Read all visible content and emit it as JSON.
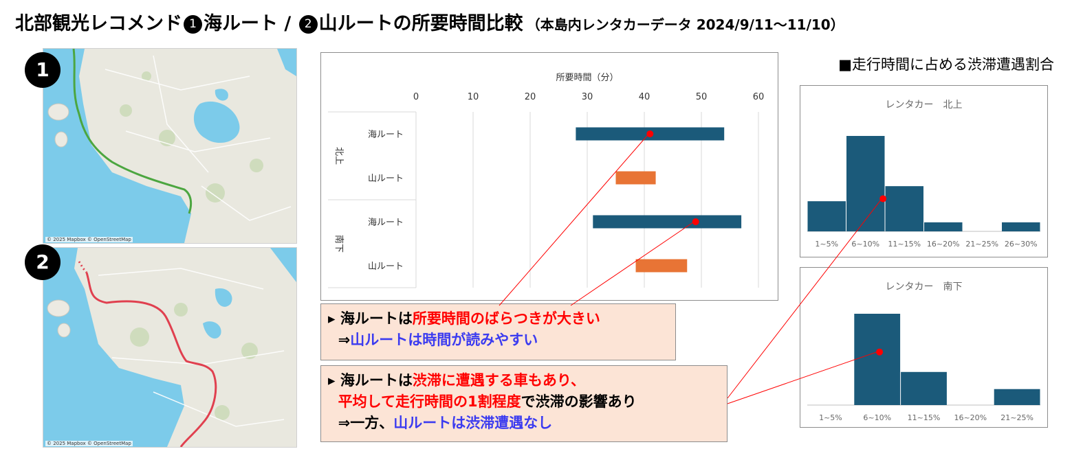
{
  "title": {
    "part1": "北部観光レコメンド",
    "badge1": "1",
    "part2": "海ルート / ",
    "badge2": "2",
    "part3": "山ルートの所要時間比較",
    "subtitle": "（本島内レンタカーデータ 2024/9/11～11/10）"
  },
  "maps": [
    {
      "badge": "1",
      "credit": "© 2025 Mapbox © OpenStreetMap",
      "route_color": "#4ca640"
    },
    {
      "badge": "2",
      "credit": "© 2025 Mapbox © OpenStreetMap",
      "route_color": "#e0404f"
    }
  ],
  "hist_section_title": "■走行時間に占める渋滞遭遇割合",
  "callouts": [
    {
      "lines": [
        [
          {
            "t": "▸ 海ルートは",
            "c": ""
          },
          {
            "t": "所要時間のばらつきが大きい",
            "c": "red"
          }
        ],
        [
          {
            "t": "  ⇒",
            "c": ""
          },
          {
            "t": "山ルートは時間が読みやすい",
            "c": "blue"
          }
        ]
      ]
    },
    {
      "lines": [
        [
          {
            "t": "▸ 海ルートは",
            "c": ""
          },
          {
            "t": "渋滞に遭遇する車もあり、",
            "c": "red"
          }
        ],
        [
          {
            "t": "  ",
            "c": ""
          },
          {
            "t": "平均して走行時間の1割程度",
            "c": "red"
          },
          {
            "t": "で渋滞の影響あり",
            "c": ""
          }
        ],
        [
          {
            "t": "  ⇒一方、",
            "c": ""
          },
          {
            "t": "山ルートは渋滞遭遇なし",
            "c": "blue"
          }
        ]
      ]
    }
  ],
  "colors": {
    "sea": "#1b5a7a",
    "mountain": "#e87435",
    "marker": "#ff0000",
    "bar": "#1b5a7a"
  },
  "chart_data": [
    {
      "type": "bar",
      "orientation": "horizontal-range",
      "xlabel": "所要時間（分）",
      "xlim": [
        0,
        60
      ],
      "xticks": [
        0,
        10,
        20,
        30,
        40,
        50,
        60
      ],
      "groups": [
        {
          "name": "北上",
          "rows": [
            {
              "label": "海ルート",
              "start": 28,
              "end": 54,
              "mean": 41,
              "series": "sea"
            },
            {
              "label": "山ルート",
              "start": 35,
              "end": 42,
              "series": "mountain"
            }
          ]
        },
        {
          "name": "南下",
          "rows": [
            {
              "label": "海ルート",
              "start": 31,
              "end": 57,
              "mean": 49,
              "series": "sea"
            },
            {
              "label": "山ルート",
              "start": 38.5,
              "end": 47.5,
              "series": "mountain"
            }
          ]
        }
      ],
      "grid": true
    },
    {
      "type": "bar",
      "title": "レンタカー　北上",
      "categories": [
        "1~5%",
        "6~10%",
        "11~15%",
        "16~20%",
        "21~25%",
        "26~30%"
      ],
      "values": [
        6,
        19,
        9,
        1.8,
        0,
        1.8
      ],
      "mean": {
        "category_index": 1.95,
        "value": 6.5
      }
    },
    {
      "type": "bar",
      "title": "レンタカー　南下",
      "categories": [
        "1~5%",
        "6~10%",
        "11~15%",
        "16~20%",
        "21~25%"
      ],
      "values": [
        0,
        16,
        5.8,
        0,
        2.8
      ],
      "mean": {
        "category_index": 1.55,
        "value": 9.3
      }
    }
  ]
}
